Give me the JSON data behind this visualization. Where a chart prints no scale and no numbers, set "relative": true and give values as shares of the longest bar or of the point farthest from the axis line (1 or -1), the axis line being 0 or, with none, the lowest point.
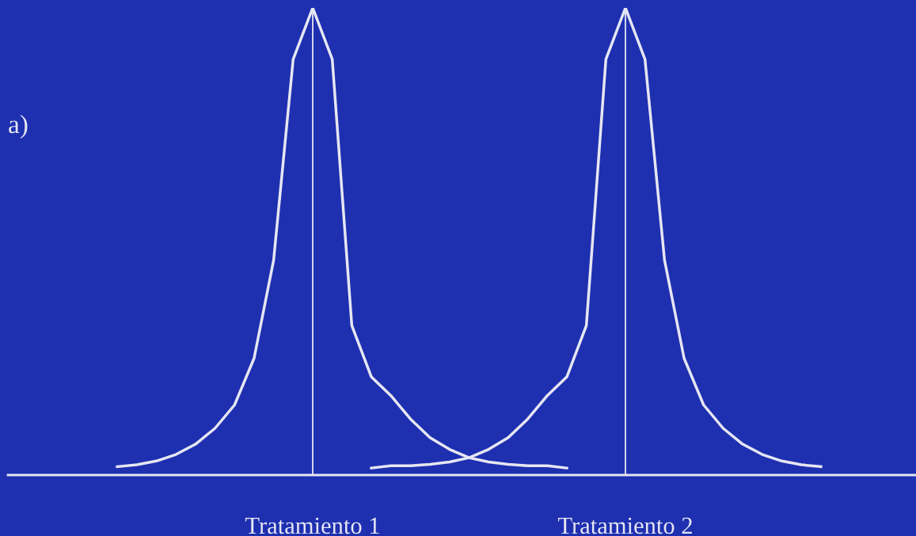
{
  "chart_data": {
    "type": "line",
    "relative": true,
    "tick_labels": "x",
    "grid": false,
    "marker": "none",
    "line_style": "solid",
    "categories": [
      null,
      null,
      null,
      null,
      null,
      null,
      null,
      null,
      null,
      null,
      null,
      null,
      null,
      null,
      null,
      "Tratamiento 1",
      null,
      null,
      null,
      null,
      null,
      null,
      null,
      null,
      null,
      null,
      null,
      null,
      null,
      null,
      null,
      "Tratamiento 2",
      null,
      null,
      null,
      null,
      null,
      null,
      null,
      null,
      null,
      null,
      null,
      null,
      null,
      null
    ],
    "series": [
      {
        "color": "#e6e6f2",
        "values": [
          null,
          null,
          null,
          null,
          null,
          0.018,
          0.022,
          0.03,
          0.044,
          0.066,
          0.1,
          0.15,
          0.25,
          0.46,
          0.89,
          1,
          0.89,
          0.32,
          0.21,
          0.17,
          0.12,
          0.08,
          0.055,
          0.037,
          0.028,
          0.023,
          0.02,
          0.02,
          0.015,
          null,
          null,
          null,
          null,
          null,
          null,
          null,
          null,
          null,
          null,
          null,
          null,
          null,
          null,
          null,
          null,
          null
        ]
      },
      {
        "color": "#e6e6f2",
        "values": [
          null,
          null,
          null,
          null,
          null,
          null,
          null,
          null,
          null,
          null,
          null,
          null,
          null,
          null,
          null,
          null,
          null,
          null,
          0.015,
          0.02,
          0.02,
          0.023,
          0.028,
          0.037,
          0.055,
          0.08,
          0.12,
          0.17,
          0.21,
          0.32,
          0.89,
          1,
          0.89,
          0.46,
          0.25,
          0.15,
          0.1,
          0.066,
          0.044,
          0.03,
          0.022,
          0.018,
          null,
          null,
          null,
          null
        ]
      }
    ],
    "ref_lines": [
      {
        "axis": "x",
        "value": "Tratamiento 1",
        "color": "#e6e6f2"
      },
      {
        "axis": "x",
        "value": "Tratamiento 2",
        "color": "#e6e6f2"
      }
    ],
    "annotations": [
      "a)"
    ]
  }
}
